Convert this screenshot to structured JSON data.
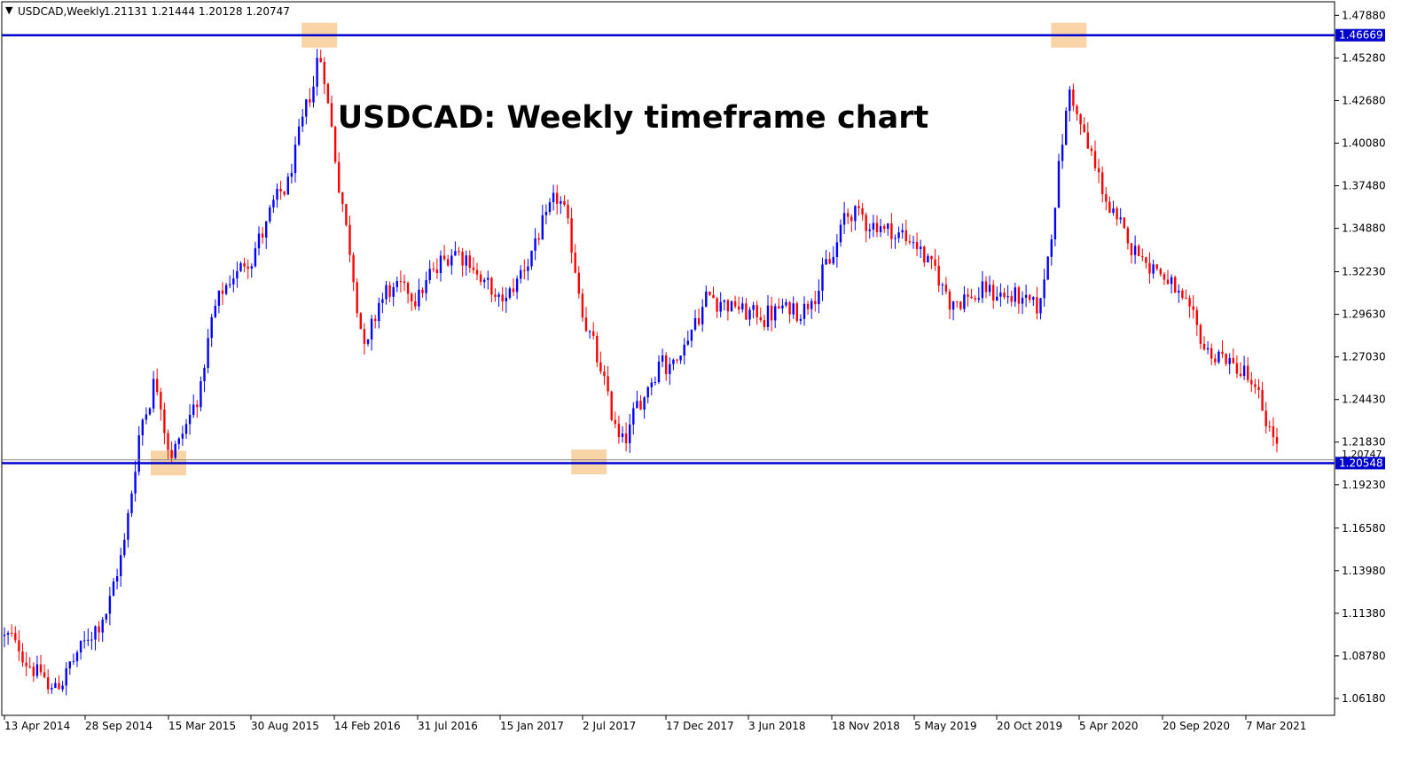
{
  "header": {
    "symbol": "USDCAD,Weekly",
    "ohlc": "1.21131 1.21444 1.20128 1.20747"
  },
  "chart_data": {
    "type": "candlestick",
    "title": "USDCAD: Weekly timeframe chart",
    "y_ticks": [
      "1.47880",
      "1.45280",
      "1.42680",
      "1.40080",
      "1.37480",
      "1.34880",
      "1.32230",
      "1.29630",
      "1.27030",
      "1.24430",
      "1.21830",
      "1.19230",
      "1.16580",
      "1.13980",
      "1.11380",
      "1.08780",
      "1.06180"
    ],
    "ylim": [
      1.0515,
      1.4871
    ],
    "x_ticks": [
      "13 Apr 2014",
      "28 Sep 2014",
      "15 Mar 2015",
      "30 Aug 2015",
      "14 Feb 2016",
      "31 Jul 2016",
      "15 Jan 2017",
      "2 Jul 2017",
      "17 Dec 2017",
      "3 Jun 2018",
      "18 Nov 2018",
      "5 May 2019",
      "20 Oct 2019",
      "5 Apr 2020",
      "20 Sep 2020",
      "7 Mar 2021"
    ],
    "horizontal_levels": [
      {
        "label": "1.46669",
        "value": 1.46669
      },
      {
        "label": "1.20548",
        "value": 1.20548
      }
    ],
    "current_price_label": "1.20747",
    "highlight_points": [
      {
        "date": "15 Mar 2015",
        "value": 1.2055
      },
      {
        "date": "Jan 2016",
        "value": 1.4667
      },
      {
        "date": "Jul 2017",
        "value": 1.2062
      },
      {
        "date": "Mar 2020",
        "value": 1.4667
      }
    ],
    "anchors": [
      [
        "13 Apr 2014",
        1.1
      ],
      [
        "Jun 2014",
        1.08
      ],
      [
        "Jul 2014",
        1.065
      ],
      [
        "Sep 2014",
        1.09
      ],
      [
        "Nov 2014",
        1.12
      ],
      [
        "Dec 2014",
        1.16
      ],
      [
        "Jan 2015",
        1.23
      ],
      [
        "Feb 2015",
        1.26
      ],
      [
        "Mar 2015",
        1.21
      ],
      [
        "15 Mar 2015",
        1.2055
      ],
      [
        "May 2015",
        1.25
      ],
      [
        "Jun 2015",
        1.3
      ],
      [
        "Aug 2015",
        1.33
      ],
      [
        "30 Aug 2015",
        1.335
      ],
      [
        "Nov 2015",
        1.38
      ],
      [
        "Jan 2016",
        1.46
      ],
      [
        "14 Feb 2016",
        1.39
      ],
      [
        "Apr 2016",
        1.27
      ],
      [
        "May 2016",
        1.31
      ],
      [
        "31 Jul 2016",
        1.31
      ],
      [
        "Oct 2016",
        1.34
      ],
      [
        "15 Jan 2017",
        1.3
      ],
      [
        "May 2017",
        1.37
      ],
      [
        "2 Jul 2017",
        1.295
      ],
      [
        "Sep 2017",
        1.215
      ],
      [
        "Dec 2017",
        1.28
      ],
      [
        "17 Dec 2017",
        1.26
      ],
      [
        "Mar 2018",
        1.31
      ],
      [
        "3 Jun 2018",
        1.295
      ],
      [
        "Sep 2018",
        1.3
      ],
      [
        "18 Nov 2018",
        1.33
      ],
      [
        "Dec 2018",
        1.36
      ],
      [
        "5 May 2019",
        1.34
      ],
      [
        "Jul 2019",
        1.305
      ],
      [
        "20 Oct 2019",
        1.31
      ],
      [
        "Jan 2020",
        1.3
      ],
      [
        "Mar 2020",
        1.44
      ],
      [
        "5 Apr 2020",
        1.41
      ],
      [
        "Jun 2020",
        1.35
      ],
      [
        "20 Sep 2020",
        1.32
      ],
      [
        "Dec 2020",
        1.275
      ],
      [
        "7 Mar 2021",
        1.26
      ],
      [
        "Apr 2021",
        1.23
      ],
      [
        "May 2021",
        1.2075
      ]
    ],
    "colors": {
      "bull": "#0000ff",
      "bear": "#ff0000",
      "level": "#0000cc",
      "highlight": "#f7c68a",
      "grid": "#000000",
      "text": "#000000"
    },
    "grid": false
  }
}
